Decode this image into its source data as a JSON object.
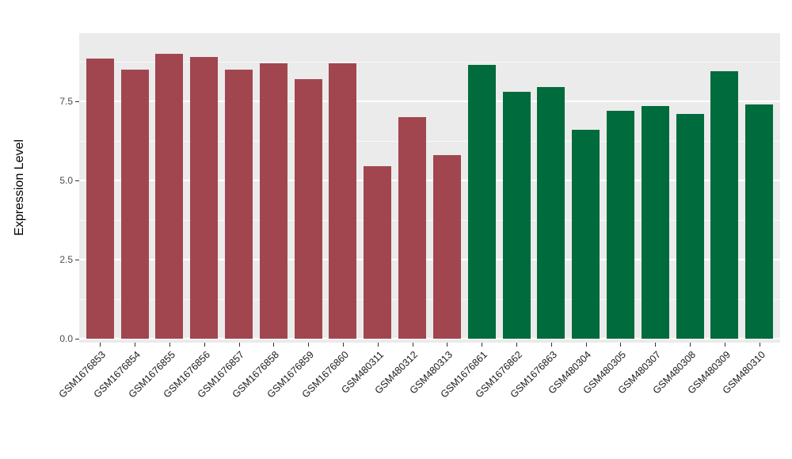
{
  "figure": {
    "background": "#FFFFFF",
    "panel_background": "#EBEBEB",
    "gridline_color": "#FFFFFF"
  },
  "chart_data": {
    "type": "bar",
    "title": "",
    "xlabel": "",
    "ylabel": "Expression Level",
    "y_ticks": [
      "0.0",
      "2.5",
      "5.0",
      "7.5"
    ],
    "ylim": [
      0,
      9.7
    ],
    "grid": true,
    "legend": "none",
    "categories": [
      "GSM1676853",
      "GSM1676854",
      "GSM1676855",
      "GSM1676856",
      "GSM1676857",
      "GSM1676858",
      "GSM1676859",
      "GSM1676860",
      "GSM480311",
      "GSM480312",
      "GSM480313",
      "GSM1676861",
      "GSM1676862",
      "GSM1676863",
      "GSM480304",
      "GSM480305",
      "GSM480307",
      "GSM480308",
      "GSM480309",
      "GSM480310"
    ],
    "values": [
      8.85,
      8.5,
      9.0,
      8.9,
      8.5,
      8.7,
      8.2,
      8.7,
      5.45,
      7.0,
      5.8,
      8.65,
      7.8,
      7.95,
      6.6,
      7.2,
      7.35,
      7.1,
      8.45,
      7.4
    ],
    "groups": [
      "maroon",
      "maroon",
      "maroon",
      "maroon",
      "maroon",
      "maroon",
      "maroon",
      "maroon",
      "maroon",
      "maroon",
      "maroon",
      "green",
      "green",
      "green",
      "green",
      "green",
      "green",
      "green",
      "green",
      "green"
    ],
    "group_colors": {
      "maroon": "#A1464F",
      "green": "#006B3C"
    }
  }
}
